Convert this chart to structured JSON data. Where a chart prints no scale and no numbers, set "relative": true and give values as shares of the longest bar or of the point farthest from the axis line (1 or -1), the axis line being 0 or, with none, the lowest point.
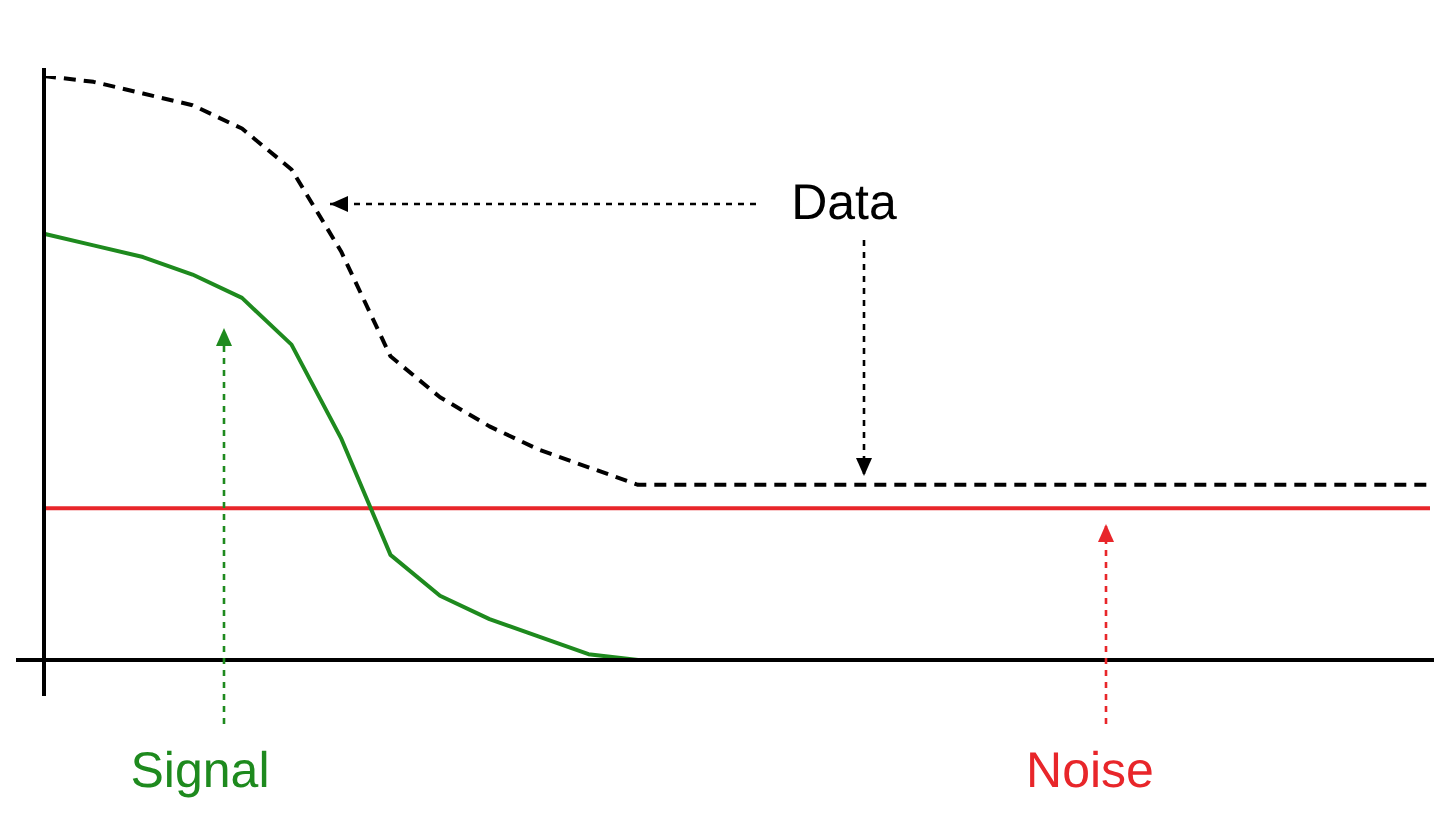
{
  "chart_data": {
    "type": "line",
    "relative": true,
    "legend": false,
    "marker": "none",
    "categories": [
      null,
      null,
      null,
      null,
      null,
      null,
      null,
      null,
      null,
      null,
      null,
      null,
      null,
      null,
      null,
      null,
      null,
      null,
      null,
      null,
      null,
      null,
      null,
      null,
      null,
      null,
      null,
      null,
      null
    ],
    "series": [
      {
        "name": "Data",
        "color": "#000000",
        "line_style": "dashed",
        "values": [
          1.0,
          0.99,
          0.97,
          0.95,
          0.91,
          0.84,
          0.7,
          0.52,
          0.45,
          0.4,
          0.36,
          0.33,
          0.3,
          0.3,
          0.3,
          0.3,
          0.3,
          0.3,
          0.3,
          0.3,
          0.3,
          0.3,
          0.3,
          0.3,
          0.3,
          0.3,
          0.3,
          0.3,
          0.3
        ]
      },
      {
        "name": "Signal",
        "color": "#1e8a1e",
        "line_style": "solid",
        "values": [
          0.73,
          0.71,
          0.69,
          0.66,
          0.62,
          0.54,
          0.38,
          0.18,
          0.11,
          0.07,
          0.04,
          0.01,
          0,
          null,
          null,
          null,
          null,
          null,
          null,
          null,
          null,
          null,
          null,
          null,
          null,
          null,
          null,
          null,
          null
        ]
      },
      {
        "name": "Noise",
        "color": "#e8262a",
        "line_style": "solid",
        "values": [
          0.26,
          0.26,
          0.26,
          0.26,
          0.26,
          0.26,
          0.26,
          0.26,
          0.26,
          0.26,
          0.26,
          0.26,
          0.26,
          0.26,
          0.26,
          0.26,
          0.26,
          0.26,
          0.26,
          0.26,
          0.26,
          0.26,
          0.26,
          0.26,
          0.26,
          0.26,
          0.26,
          0.26,
          0.26
        ]
      }
    ]
  }
}
